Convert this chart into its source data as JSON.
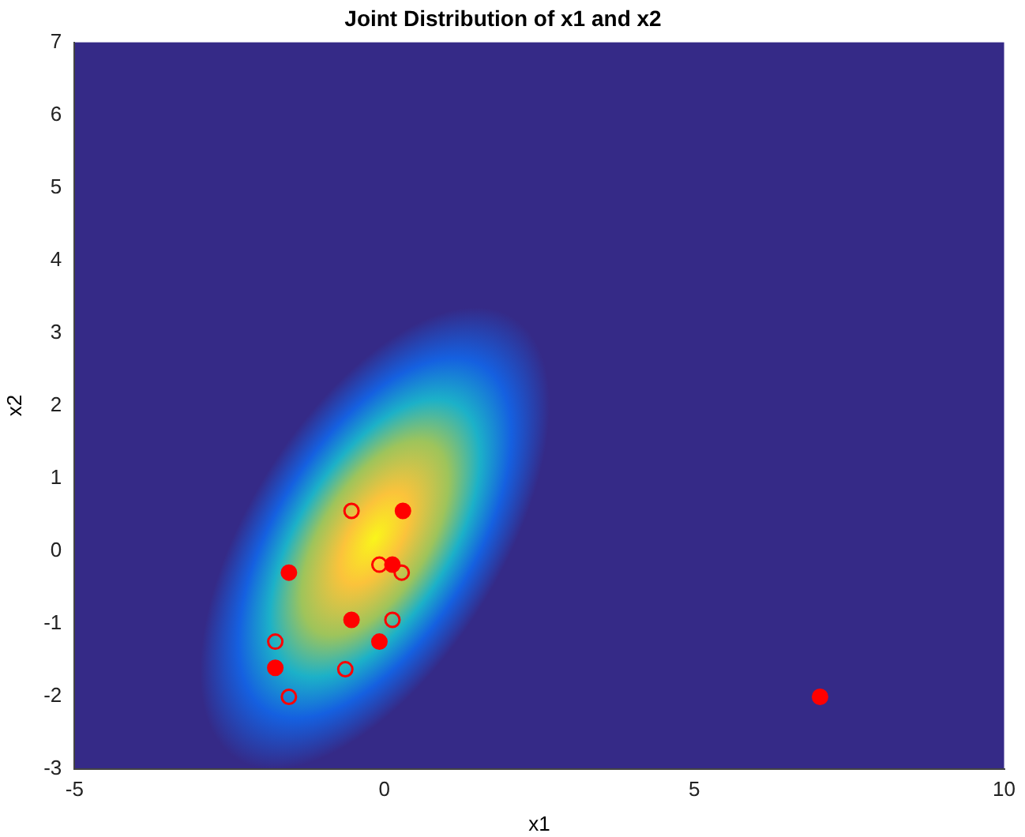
{
  "chart_data": {
    "type": "scatter",
    "title": "Joint Distribution of x1 and x2",
    "xlabel": "x1",
    "ylabel": "x2",
    "xlim": [
      -5,
      10
    ],
    "xticks": [
      -5,
      0,
      5,
      10
    ],
    "ylim": [
      -3,
      7
    ],
    "yticks": [
      -3,
      -2,
      -1,
      0,
      1,
      2,
      3,
      4,
      5,
      6,
      7
    ],
    "grid": false,
    "legend": false,
    "series": [
      {
        "color": "#ff0000",
        "marker": "circle",
        "x": [
          0.3,
          0.13,
          -1.54,
          -0.53,
          -0.08,
          -1.76,
          7.03
        ],
        "values": [
          0.55,
          -0.19,
          -0.3,
          -0.95,
          -1.25,
          -1.61,
          -2.01
        ]
      },
      {
        "color": "#ff0000",
        "marker": "circle-open",
        "x": [
          -0.53,
          -0.08,
          0.28,
          0.13,
          -1.76,
          -0.63,
          -1.54
        ],
        "values": [
          0.55,
          -0.19,
          -0.3,
          -0.95,
          -1.25,
          -1.63,
          -2.01
        ]
      }
    ]
  }
}
